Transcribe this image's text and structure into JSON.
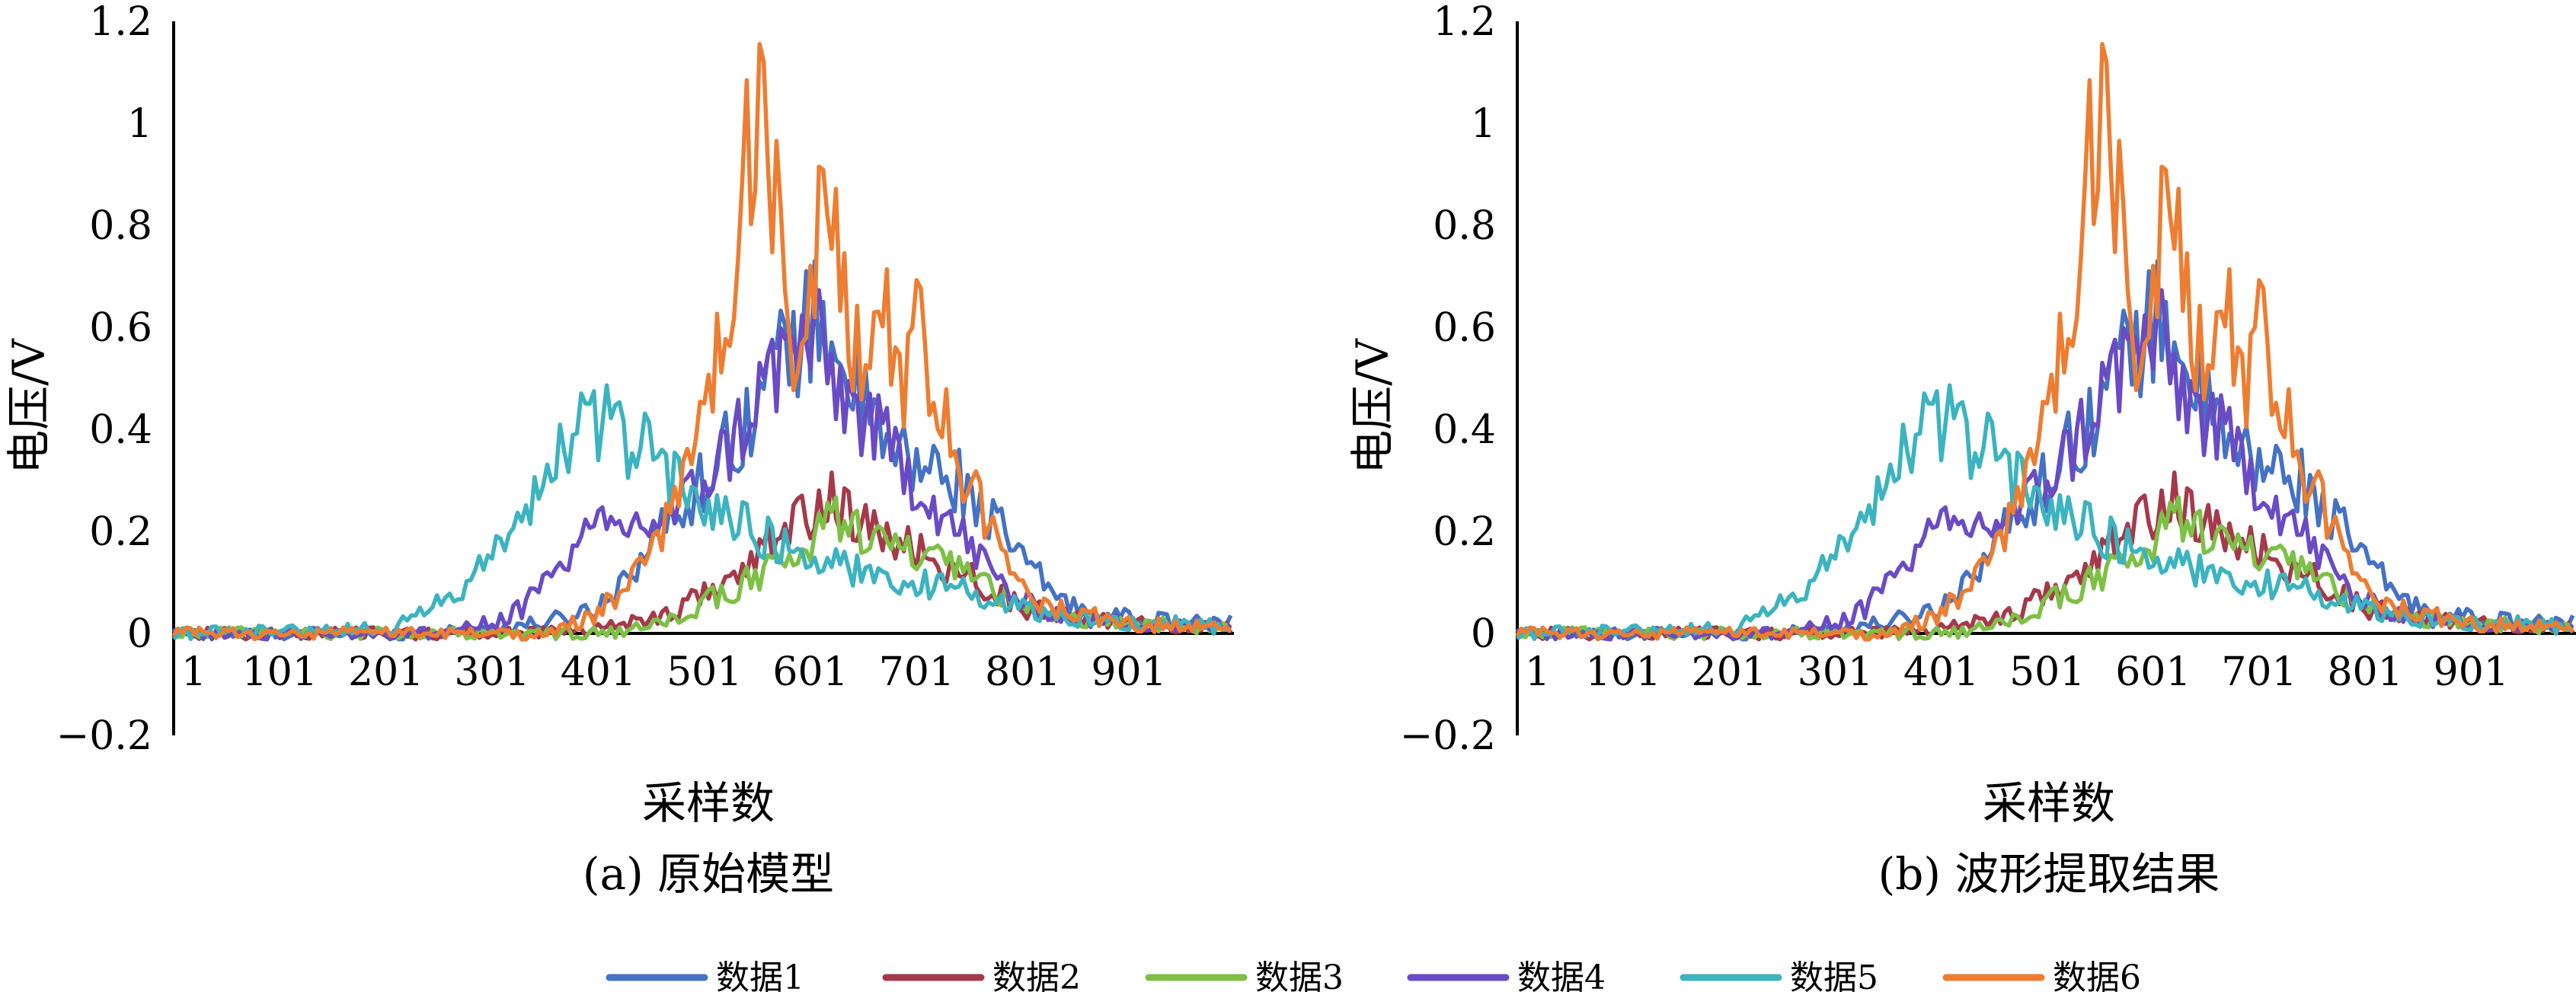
{
  "legend": {
    "items": [
      "数据1",
      "数据2",
      "数据3",
      "数据4",
      "数据5",
      "数据6"
    ],
    "colors": [
      "#4472C4",
      "#A5394A",
      "#7DC046",
      "#6A4BC4",
      "#3CB3C0",
      "#ED7D31"
    ]
  },
  "panels": [
    {
      "caption": "(a) 原始模型"
    },
    {
      "caption": "(b) 波形提取结果"
    }
  ],
  "chart_data": [
    {
      "type": "line",
      "title": "",
      "xlabel": "采样数",
      "ylabel": "电压/V",
      "x_tick_labels": [
        "1",
        "101",
        "201",
        "301",
        "401",
        "501",
        "601",
        "701",
        "801",
        "901"
      ],
      "y_tick_labels": [
        "−0.2",
        "0",
        "0.2",
        "0.4",
        "0.6",
        "0.8",
        "1",
        "1.2"
      ],
      "xlim": [
        1,
        1000
      ],
      "ylim": [
        -0.2,
        1.2
      ],
      "grid": false,
      "legend_position": "bottom",
      "series": [
        {
          "name": "数据1",
          "color": "#4472C4",
          "x": [
            1,
            150,
            250,
            300,
            350,
            400,
            430,
            460,
            480,
            500,
            520,
            540,
            560,
            580,
            600,
            610,
            620,
            630,
            640,
            650,
            660,
            680,
            700,
            720,
            740,
            760,
            780,
            800,
            820,
            850,
            900,
            950,
            1000
          ],
          "y": [
            0,
            0,
            0,
            0.01,
            0.02,
            0.05,
            0.12,
            0.2,
            0.25,
            0.3,
            0.36,
            0.42,
            0.5,
            0.56,
            0.6,
            0.63,
            0.58,
            0.55,
            0.48,
            0.45,
            0.4,
            0.35,
            0.33,
            0.32,
            0.3,
            0.25,
            0.2,
            0.15,
            0.1,
            0.05,
            0.03,
            0.02,
            0.02
          ]
        },
        {
          "name": "数据2",
          "color": "#A5394A",
          "x": [
            1,
            300,
            400,
            450,
            480,
            500,
            520,
            540,
            560,
            580,
            600,
            620,
            640,
            660,
            680,
            700,
            720,
            740,
            760,
            780,
            800,
            850,
            900,
            1000
          ],
          "y": [
            0,
            0,
            0.01,
            0.03,
            0.05,
            0.08,
            0.1,
            0.12,
            0.17,
            0.2,
            0.24,
            0.27,
            0.22,
            0.2,
            0.18,
            0.16,
            0.14,
            0.12,
            0.1,
            0.08,
            0.05,
            0.03,
            0.02,
            0.01
          ]
        },
        {
          "name": "数据3",
          "color": "#7DC046",
          "x": [
            1,
            400,
            450,
            480,
            500,
            520,
            540,
            560,
            580,
            600,
            620,
            640,
            650,
            660,
            680,
            700,
            720,
            740,
            760,
            780,
            800,
            850,
            900,
            1000
          ],
          "y": [
            0,
            0,
            0.01,
            0.03,
            0.06,
            0.08,
            0.1,
            0.12,
            0.15,
            0.17,
            0.22,
            0.24,
            0.2,
            0.18,
            0.17,
            0.15,
            0.14,
            0.12,
            0.1,
            0.08,
            0.05,
            0.03,
            0.02,
            0.01
          ]
        },
        {
          "name": "数据4",
          "color": "#6A4BC4",
          "x": [
            1,
            250,
            300,
            330,
            350,
            380,
            400,
            430,
            460,
            480,
            500,
            520,
            540,
            560,
            580,
            600,
            610,
            620,
            640,
            660,
            680,
            700,
            720,
            740,
            760,
            780,
            800,
            850,
            900,
            1000
          ],
          "y": [
            0,
            0,
            0.02,
            0.05,
            0.1,
            0.17,
            0.2,
            0.21,
            0.22,
            0.25,
            0.3,
            0.35,
            0.42,
            0.5,
            0.55,
            0.58,
            0.56,
            0.5,
            0.45,
            0.4,
            0.35,
            0.3,
            0.25,
            0.2,
            0.15,
            0.1,
            0.06,
            0.03,
            0.02,
            0.01
          ]
        },
        {
          "name": "数据5",
          "color": "#3CB3C0",
          "x": [
            1,
            200,
            230,
            260,
            280,
            300,
            330,
            350,
            370,
            390,
            410,
            430,
            450,
            470,
            490,
            510,
            530,
            550,
            570,
            600,
            650,
            700,
            750,
            800,
            850,
            900,
            950,
            1000
          ],
          "y": [
            0,
            0.01,
            0.03,
            0.07,
            0.1,
            0.15,
            0.22,
            0.3,
            0.38,
            0.4,
            0.42,
            0.38,
            0.35,
            0.3,
            0.28,
            0.25,
            0.22,
            0.2,
            0.18,
            0.15,
            0.12,
            0.1,
            0.08,
            0.05,
            0.03,
            0.02,
            0.02,
            0.01
          ]
        },
        {
          "name": "数据6",
          "color": "#ED7D31",
          "x": [
            1,
            350,
            380,
            400,
            420,
            440,
            460,
            480,
            500,
            520,
            530,
            540,
            550,
            560,
            570,
            580,
            590,
            600,
            610,
            620,
            630,
            640,
            650,
            660,
            670,
            680,
            690,
            700,
            710,
            720,
            730,
            740,
            750,
            760,
            780,
            800,
            820,
            850,
            900,
            1000
          ],
          "y": [
            0,
            0,
            0.02,
            0.04,
            0.08,
            0.12,
            0.18,
            0.3,
            0.45,
            0.6,
            0.75,
            0.92,
            0.96,
            1.0,
            0.8,
            0.55,
            0.5,
            0.65,
            0.82,
            0.7,
            0.78,
            0.6,
            0.5,
            0.68,
            0.74,
            0.5,
            0.45,
            0.72,
            0.55,
            0.45,
            0.4,
            0.35,
            0.3,
            0.25,
            0.15,
            0.1,
            0.06,
            0.04,
            0.02,
            0.01
          ]
        }
      ]
    },
    {
      "type": "line",
      "title": "",
      "xlabel": "采样数",
      "ylabel": "电压/V",
      "x_tick_labels": [
        "1",
        "101",
        "201",
        "301",
        "401",
        "501",
        "601",
        "701",
        "801",
        "901"
      ],
      "y_tick_labels": [
        "−0.2",
        "0",
        "0.2",
        "0.4",
        "0.6",
        "0.8",
        "1",
        "1.2"
      ],
      "xlim": [
        1,
        1000
      ],
      "ylim": [
        -0.2,
        1.2
      ],
      "grid": false,
      "legend_position": "bottom",
      "series": [
        {
          "name": "数据1",
          "color": "#4472C4",
          "x": [
            1,
            150,
            250,
            300,
            350,
            400,
            430,
            460,
            480,
            500,
            520,
            540,
            560,
            580,
            600,
            610,
            620,
            630,
            640,
            650,
            660,
            680,
            700,
            720,
            740,
            760,
            780,
            800,
            820,
            850,
            900,
            950,
            1000
          ],
          "y": [
            0,
            0,
            0,
            0.01,
            0.02,
            0.05,
            0.12,
            0.2,
            0.25,
            0.3,
            0.36,
            0.42,
            0.5,
            0.56,
            0.6,
            0.63,
            0.58,
            0.55,
            0.48,
            0.45,
            0.4,
            0.35,
            0.33,
            0.32,
            0.3,
            0.25,
            0.2,
            0.15,
            0.1,
            0.05,
            0.03,
            0.02,
            0.02
          ]
        },
        {
          "name": "数据2",
          "color": "#A5394A",
          "x": [
            1,
            300,
            400,
            450,
            480,
            500,
            520,
            540,
            560,
            580,
            600,
            620,
            640,
            660,
            680,
            700,
            720,
            740,
            760,
            780,
            800,
            850,
            900,
            1000
          ],
          "y": [
            0,
            0,
            0.01,
            0.03,
            0.05,
            0.08,
            0.1,
            0.12,
            0.17,
            0.2,
            0.24,
            0.27,
            0.22,
            0.2,
            0.18,
            0.16,
            0.14,
            0.12,
            0.1,
            0.08,
            0.05,
            0.03,
            0.02,
            0.01
          ]
        },
        {
          "name": "数据3",
          "color": "#7DC046",
          "x": [
            1,
            400,
            450,
            480,
            500,
            520,
            540,
            560,
            580,
            600,
            620,
            640,
            650,
            660,
            680,
            700,
            720,
            740,
            760,
            780,
            800,
            850,
            900,
            1000
          ],
          "y": [
            0,
            0,
            0.01,
            0.03,
            0.06,
            0.08,
            0.1,
            0.12,
            0.15,
            0.17,
            0.22,
            0.24,
            0.2,
            0.18,
            0.17,
            0.15,
            0.14,
            0.12,
            0.1,
            0.08,
            0.05,
            0.03,
            0.02,
            0.01
          ]
        },
        {
          "name": "数据4",
          "color": "#6A4BC4",
          "x": [
            1,
            250,
            300,
            330,
            350,
            380,
            400,
            430,
            460,
            480,
            500,
            520,
            540,
            560,
            580,
            600,
            610,
            620,
            640,
            660,
            680,
            700,
            720,
            740,
            760,
            780,
            800,
            850,
            900,
            1000
          ],
          "y": [
            0,
            0,
            0.02,
            0.05,
            0.1,
            0.17,
            0.2,
            0.21,
            0.22,
            0.25,
            0.3,
            0.35,
            0.42,
            0.5,
            0.55,
            0.58,
            0.56,
            0.5,
            0.45,
            0.4,
            0.35,
            0.3,
            0.25,
            0.2,
            0.15,
            0.1,
            0.06,
            0.03,
            0.02,
            0.01
          ]
        },
        {
          "name": "数据5",
          "color": "#3CB3C0",
          "x": [
            1,
            200,
            230,
            260,
            280,
            300,
            330,
            350,
            370,
            390,
            410,
            430,
            450,
            470,
            490,
            510,
            530,
            550,
            570,
            600,
            650,
            700,
            750,
            800,
            850,
            900,
            950,
            1000
          ],
          "y": [
            0,
            0.01,
            0.03,
            0.07,
            0.1,
            0.15,
            0.22,
            0.3,
            0.38,
            0.4,
            0.42,
            0.38,
            0.35,
            0.3,
            0.28,
            0.25,
            0.22,
            0.2,
            0.18,
            0.15,
            0.12,
            0.1,
            0.08,
            0.05,
            0.03,
            0.02,
            0.02,
            0.01
          ]
        },
        {
          "name": "数据6",
          "color": "#ED7D31",
          "x": [
            1,
            350,
            380,
            400,
            420,
            440,
            460,
            480,
            500,
            520,
            530,
            540,
            550,
            560,
            570,
            580,
            590,
            600,
            610,
            620,
            630,
            640,
            650,
            660,
            670,
            680,
            690,
            700,
            710,
            720,
            730,
            740,
            750,
            760,
            780,
            800,
            820,
            850,
            900,
            1000
          ],
          "y": [
            0,
            0,
            0.02,
            0.04,
            0.08,
            0.12,
            0.18,
            0.3,
            0.45,
            0.6,
            0.75,
            0.92,
            0.96,
            1.0,
            0.8,
            0.55,
            0.5,
            0.65,
            0.82,
            0.7,
            0.78,
            0.6,
            0.5,
            0.68,
            0.74,
            0.5,
            0.45,
            0.72,
            0.55,
            0.45,
            0.4,
            0.35,
            0.3,
            0.25,
            0.15,
            0.1,
            0.06,
            0.04,
            0.02,
            0.01
          ]
        }
      ]
    }
  ]
}
